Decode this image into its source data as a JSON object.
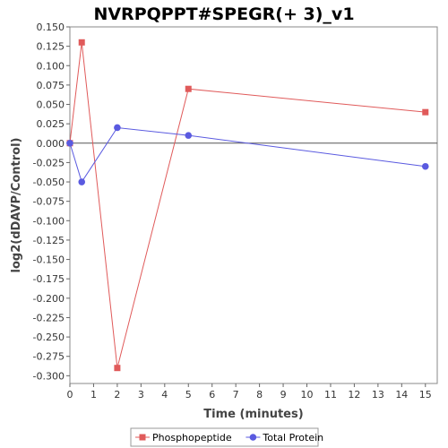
{
  "chart_data": {
    "type": "line",
    "title": "NVRPQPPT#SPEGR(+ 3)_v1",
    "xlabel": "Time (minutes)",
    "ylabel": "log2(dDAVP/Control)",
    "xlim": [
      0,
      15.5
    ],
    "ylim": [
      -0.31,
      0.15
    ],
    "x_ticks": [
      0,
      1,
      2,
      3,
      4,
      5,
      6,
      7,
      8,
      9,
      10,
      11,
      12,
      13,
      14,
      15
    ],
    "y_ticks": [
      0.15,
      0.125,
      0.1,
      0.075,
      0.05,
      0.025,
      0.0,
      -0.025,
      -0.05,
      -0.075,
      -0.1,
      -0.125,
      -0.15,
      -0.175,
      -0.2,
      -0.225,
      -0.25,
      -0.275,
      -0.3
    ],
    "y_tick_labels": [
      "0.150",
      "0.125",
      "0.100",
      "0.075",
      "0.050",
      "0.025",
      "0.000",
      "-0.025",
      "-0.050",
      "-0.075",
      "-0.100",
      "-0.125",
      "-0.150",
      "-0.175",
      "-0.200",
      "-0.225",
      "-0.250",
      "-0.275",
      "-0.300"
    ],
    "zero_line": true,
    "grid": false,
    "legend_position": "bottom",
    "series": [
      {
        "name": "Phosphopeptide",
        "color": "#e05a5a",
        "marker": "square",
        "x": [
          0,
          0.5,
          2,
          5,
          15
        ],
        "values": [
          0.0,
          0.13,
          -0.29,
          0.07,
          0.04
        ]
      },
      {
        "name": "Total Protein",
        "color": "#5a5ae0",
        "marker": "circle",
        "x": [
          0,
          0.5,
          2,
          5,
          15
        ],
        "values": [
          0.0,
          -0.05,
          0.02,
          0.01,
          -0.03
        ]
      }
    ]
  }
}
